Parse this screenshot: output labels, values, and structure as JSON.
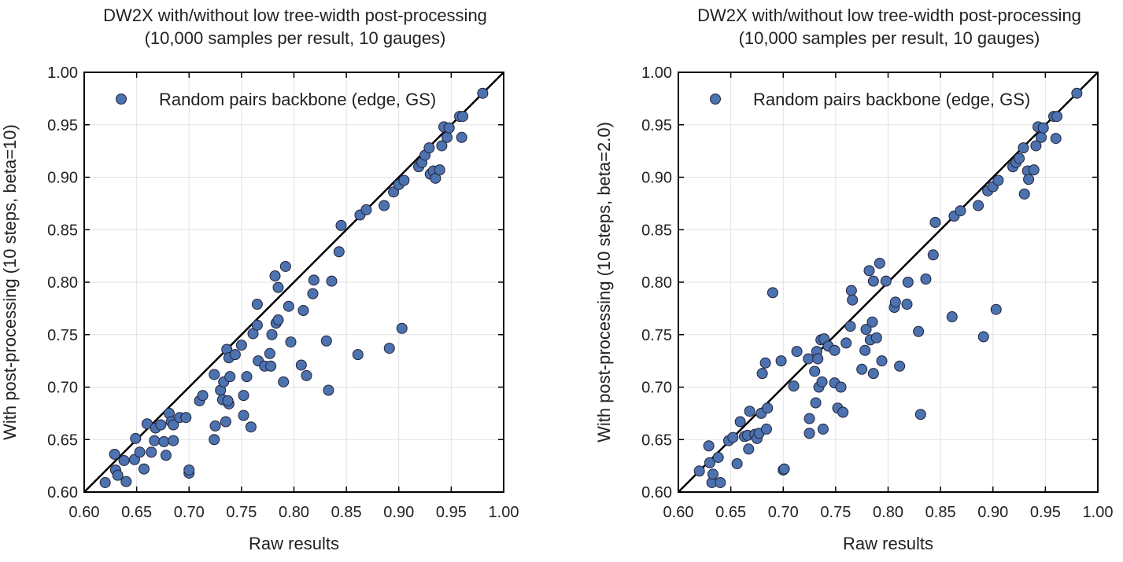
{
  "colors": {
    "point": "#4c72b0",
    "line": "#000000",
    "grid": "#e2e2e2"
  },
  "chart_data": [
    {
      "type": "scatter",
      "title": "DW2X with/without low tree-width post-processing",
      "subtitle": "(10,000 samples per result, 10 gauges)",
      "xlabel": "Raw results",
      "ylabel": "With post-processing (10 steps, beta=10)",
      "xlim": [
        0.6,
        1.0
      ],
      "ylim": [
        0.6,
        1.0
      ],
      "xticks": [
        "0.60",
        "0.65",
        "0.70",
        "0.75",
        "0.80",
        "0.85",
        "0.90",
        "0.95",
        "1.00"
      ],
      "yticks": [
        "0.60",
        "0.65",
        "0.70",
        "0.75",
        "0.80",
        "0.85",
        "0.90",
        "0.95",
        "1.00"
      ],
      "grid": true,
      "legend": {
        "position": "top-left",
        "entries": [
          "Random pairs backbone (edge, GS)"
        ]
      },
      "reference_line": "y = x",
      "series": [
        {
          "name": "Random pairs backbone (edge, GS)",
          "points": [
            [
              0.62,
              0.609
            ],
            [
              0.63,
              0.621
            ],
            [
              0.632,
              0.616
            ],
            [
              0.629,
              0.636
            ],
            [
              0.638,
              0.63
            ],
            [
              0.64,
              0.61
            ],
            [
              0.648,
              0.631
            ],
            [
              0.649,
              0.651
            ],
            [
              0.653,
              0.638
            ],
            [
              0.657,
              0.622
            ],
            [
              0.66,
              0.665
            ],
            [
              0.664,
              0.638
            ],
            [
              0.667,
              0.649
            ],
            [
              0.668,
              0.661
            ],
            [
              0.673,
              0.664
            ],
            [
              0.676,
              0.648
            ],
            [
              0.678,
              0.635
            ],
            [
              0.681,
              0.675
            ],
            [
              0.683,
              0.667
            ],
            [
              0.685,
              0.664
            ],
            [
              0.685,
              0.649
            ],
            [
              0.691,
              0.671
            ],
            [
              0.697,
              0.671
            ],
            [
              0.7,
              0.618
            ],
            [
              0.7,
              0.621
            ],
            [
              0.71,
              0.687
            ],
            [
              0.713,
              0.692
            ],
            [
              0.724,
              0.712
            ],
            [
              0.725,
              0.663
            ],
            [
              0.724,
              0.65
            ],
            [
              0.73,
              0.697
            ],
            [
              0.732,
              0.688
            ],
            [
              0.733,
              0.705
            ],
            [
              0.735,
              0.667
            ],
            [
              0.736,
              0.736
            ],
            [
              0.738,
              0.728
            ],
            [
              0.738,
              0.684
            ],
            [
              0.739,
              0.71
            ],
            [
              0.737,
              0.687
            ],
            [
              0.744,
              0.731
            ],
            [
              0.75,
              0.74
            ],
            [
              0.752,
              0.692
            ],
            [
              0.752,
              0.673
            ],
            [
              0.755,
              0.71
            ],
            [
              0.759,
              0.662
            ],
            [
              0.761,
              0.751
            ],
            [
              0.765,
              0.779
            ],
            [
              0.765,
              0.759
            ],
            [
              0.766,
              0.725
            ],
            [
              0.772,
              0.72
            ],
            [
              0.777,
              0.732
            ],
            [
              0.778,
              0.72
            ],
            [
              0.779,
              0.75
            ],
            [
              0.782,
              0.806
            ],
            [
              0.783,
              0.761
            ],
            [
              0.785,
              0.795
            ],
            [
              0.785,
              0.764
            ],
            [
              0.79,
              0.705
            ],
            [
              0.792,
              0.815
            ],
            [
              0.795,
              0.777
            ],
            [
              0.797,
              0.743
            ],
            [
              0.807,
              0.721
            ],
            [
              0.809,
              0.773
            ],
            [
              0.812,
              0.711
            ],
            [
              0.818,
              0.789
            ],
            [
              0.819,
              0.802
            ],
            [
              0.831,
              0.744
            ],
            [
              0.833,
              0.697
            ],
            [
              0.836,
              0.801
            ],
            [
              0.843,
              0.829
            ],
            [
              0.845,
              0.854
            ],
            [
              0.861,
              0.731
            ],
            [
              0.863,
              0.864
            ],
            [
              0.869,
              0.869
            ],
            [
              0.886,
              0.873
            ],
            [
              0.891,
              0.737
            ],
            [
              0.895,
              0.886
            ],
            [
              0.9,
              0.893
            ],
            [
              0.903,
              0.756
            ],
            [
              0.905,
              0.897
            ],
            [
              0.919,
              0.91
            ],
            [
              0.922,
              0.914
            ],
            [
              0.925,
              0.921
            ],
            [
              0.929,
              0.928
            ],
            [
              0.93,
              0.903
            ],
            [
              0.933,
              0.906
            ],
            [
              0.935,
              0.899
            ],
            [
              0.939,
              0.907
            ],
            [
              0.941,
              0.93
            ],
            [
              0.943,
              0.948
            ],
            [
              0.946,
              0.938
            ],
            [
              0.948,
              0.947
            ],
            [
              0.958,
              0.958
            ],
            [
              0.961,
              0.958
            ],
            [
              0.96,
              0.938
            ],
            [
              0.98,
              0.98
            ]
          ]
        }
      ]
    },
    {
      "type": "scatter",
      "title": "DW2X with/without low tree-width post-processing",
      "subtitle": "(10,000 samples per result, 10 gauges)",
      "xlabel": "Raw results",
      "ylabel": "With post-processing (10 steps, beta=2.0)",
      "xlim": [
        0.6,
        1.0
      ],
      "ylim": [
        0.6,
        1.0
      ],
      "xticks": [
        "0.60",
        "0.65",
        "0.70",
        "0.75",
        "0.80",
        "0.85",
        "0.90",
        "0.95",
        "1.00"
      ],
      "yticks": [
        "0.60",
        "0.65",
        "0.70",
        "0.75",
        "0.80",
        "0.85",
        "0.90",
        "0.95",
        "1.00"
      ],
      "grid": true,
      "legend": {
        "position": "top-left",
        "entries": [
          "Random pairs backbone (edge, GS)"
        ]
      },
      "reference_line": "y = x",
      "series": [
        {
          "name": "Random pairs backbone (edge, GS)",
          "points": [
            [
              0.62,
              0.62
            ],
            [
              0.629,
              0.644
            ],
            [
              0.63,
              0.628
            ],
            [
              0.632,
              0.609
            ],
            [
              0.633,
              0.617
            ],
            [
              0.638,
              0.633
            ],
            [
              0.64,
              0.609
            ],
            [
              0.648,
              0.649
            ],
            [
              0.652,
              0.652
            ],
            [
              0.656,
              0.627
            ],
            [
              0.659,
              0.667
            ],
            [
              0.663,
              0.653
            ],
            [
              0.666,
              0.654
            ],
            [
              0.667,
              0.641
            ],
            [
              0.668,
              0.677
            ],
            [
              0.673,
              0.655
            ],
            [
              0.675,
              0.651
            ],
            [
              0.677,
              0.656
            ],
            [
              0.679,
              0.675
            ],
            [
              0.68,
              0.713
            ],
            [
              0.683,
              0.723
            ],
            [
              0.684,
              0.66
            ],
            [
              0.685,
              0.68
            ],
            [
              0.69,
              0.79
            ],
            [
              0.698,
              0.725
            ],
            [
              0.7,
              0.621
            ],
            [
              0.701,
              0.622
            ],
            [
              0.71,
              0.701
            ],
            [
              0.713,
              0.734
            ],
            [
              0.724,
              0.727
            ],
            [
              0.725,
              0.67
            ],
            [
              0.725,
              0.656
            ],
            [
              0.73,
              0.715
            ],
            [
              0.731,
              0.685
            ],
            [
              0.732,
              0.734
            ],
            [
              0.733,
              0.727
            ],
            [
              0.734,
              0.7
            ],
            [
              0.736,
              0.745
            ],
            [
              0.737,
              0.705
            ],
            [
              0.739,
              0.746
            ],
            [
              0.738,
              0.66
            ],
            [
              0.743,
              0.739
            ],
            [
              0.749,
              0.704
            ],
            [
              0.749,
              0.735
            ],
            [
              0.752,
              0.68
            ],
            [
              0.755,
              0.7
            ],
            [
              0.757,
              0.676
            ],
            [
              0.76,
              0.742
            ],
            [
              0.764,
              0.758
            ],
            [
              0.765,
              0.792
            ],
            [
              0.766,
              0.783
            ],
            [
              0.775,
              0.717
            ],
            [
              0.778,
              0.735
            ],
            [
              0.779,
              0.755
            ],
            [
              0.782,
              0.811
            ],
            [
              0.783,
              0.745
            ],
            [
              0.785,
              0.762
            ],
            [
              0.786,
              0.801
            ],
            [
              0.786,
              0.713
            ],
            [
              0.789,
              0.747
            ],
            [
              0.792,
              0.818
            ],
            [
              0.794,
              0.725
            ],
            [
              0.798,
              0.801
            ],
            [
              0.806,
              0.776
            ],
            [
              0.807,
              0.781
            ],
            [
              0.811,
              0.72
            ],
            [
              0.818,
              0.779
            ],
            [
              0.819,
              0.8
            ],
            [
              0.829,
              0.753
            ],
            [
              0.831,
              0.674
            ],
            [
              0.836,
              0.803
            ],
            [
              0.843,
              0.826
            ],
            [
              0.845,
              0.857
            ],
            [
              0.861,
              0.767
            ],
            [
              0.863,
              0.863
            ],
            [
              0.869,
              0.868
            ],
            [
              0.886,
              0.873
            ],
            [
              0.891,
              0.748
            ],
            [
              0.895,
              0.887
            ],
            [
              0.9,
              0.891
            ],
            [
              0.903,
              0.774
            ],
            [
              0.905,
              0.897
            ],
            [
              0.919,
              0.91
            ],
            [
              0.922,
              0.914
            ],
            [
              0.925,
              0.918
            ],
            [
              0.929,
              0.928
            ],
            [
              0.93,
              0.884
            ],
            [
              0.933,
              0.906
            ],
            [
              0.934,
              0.898
            ],
            [
              0.939,
              0.907
            ],
            [
              0.941,
              0.93
            ],
            [
              0.943,
              0.948
            ],
            [
              0.946,
              0.938
            ],
            [
              0.948,
              0.947
            ],
            [
              0.958,
              0.958
            ],
            [
              0.961,
              0.958
            ],
            [
              0.96,
              0.937
            ],
            [
              0.98,
              0.98
            ]
          ]
        }
      ]
    }
  ]
}
